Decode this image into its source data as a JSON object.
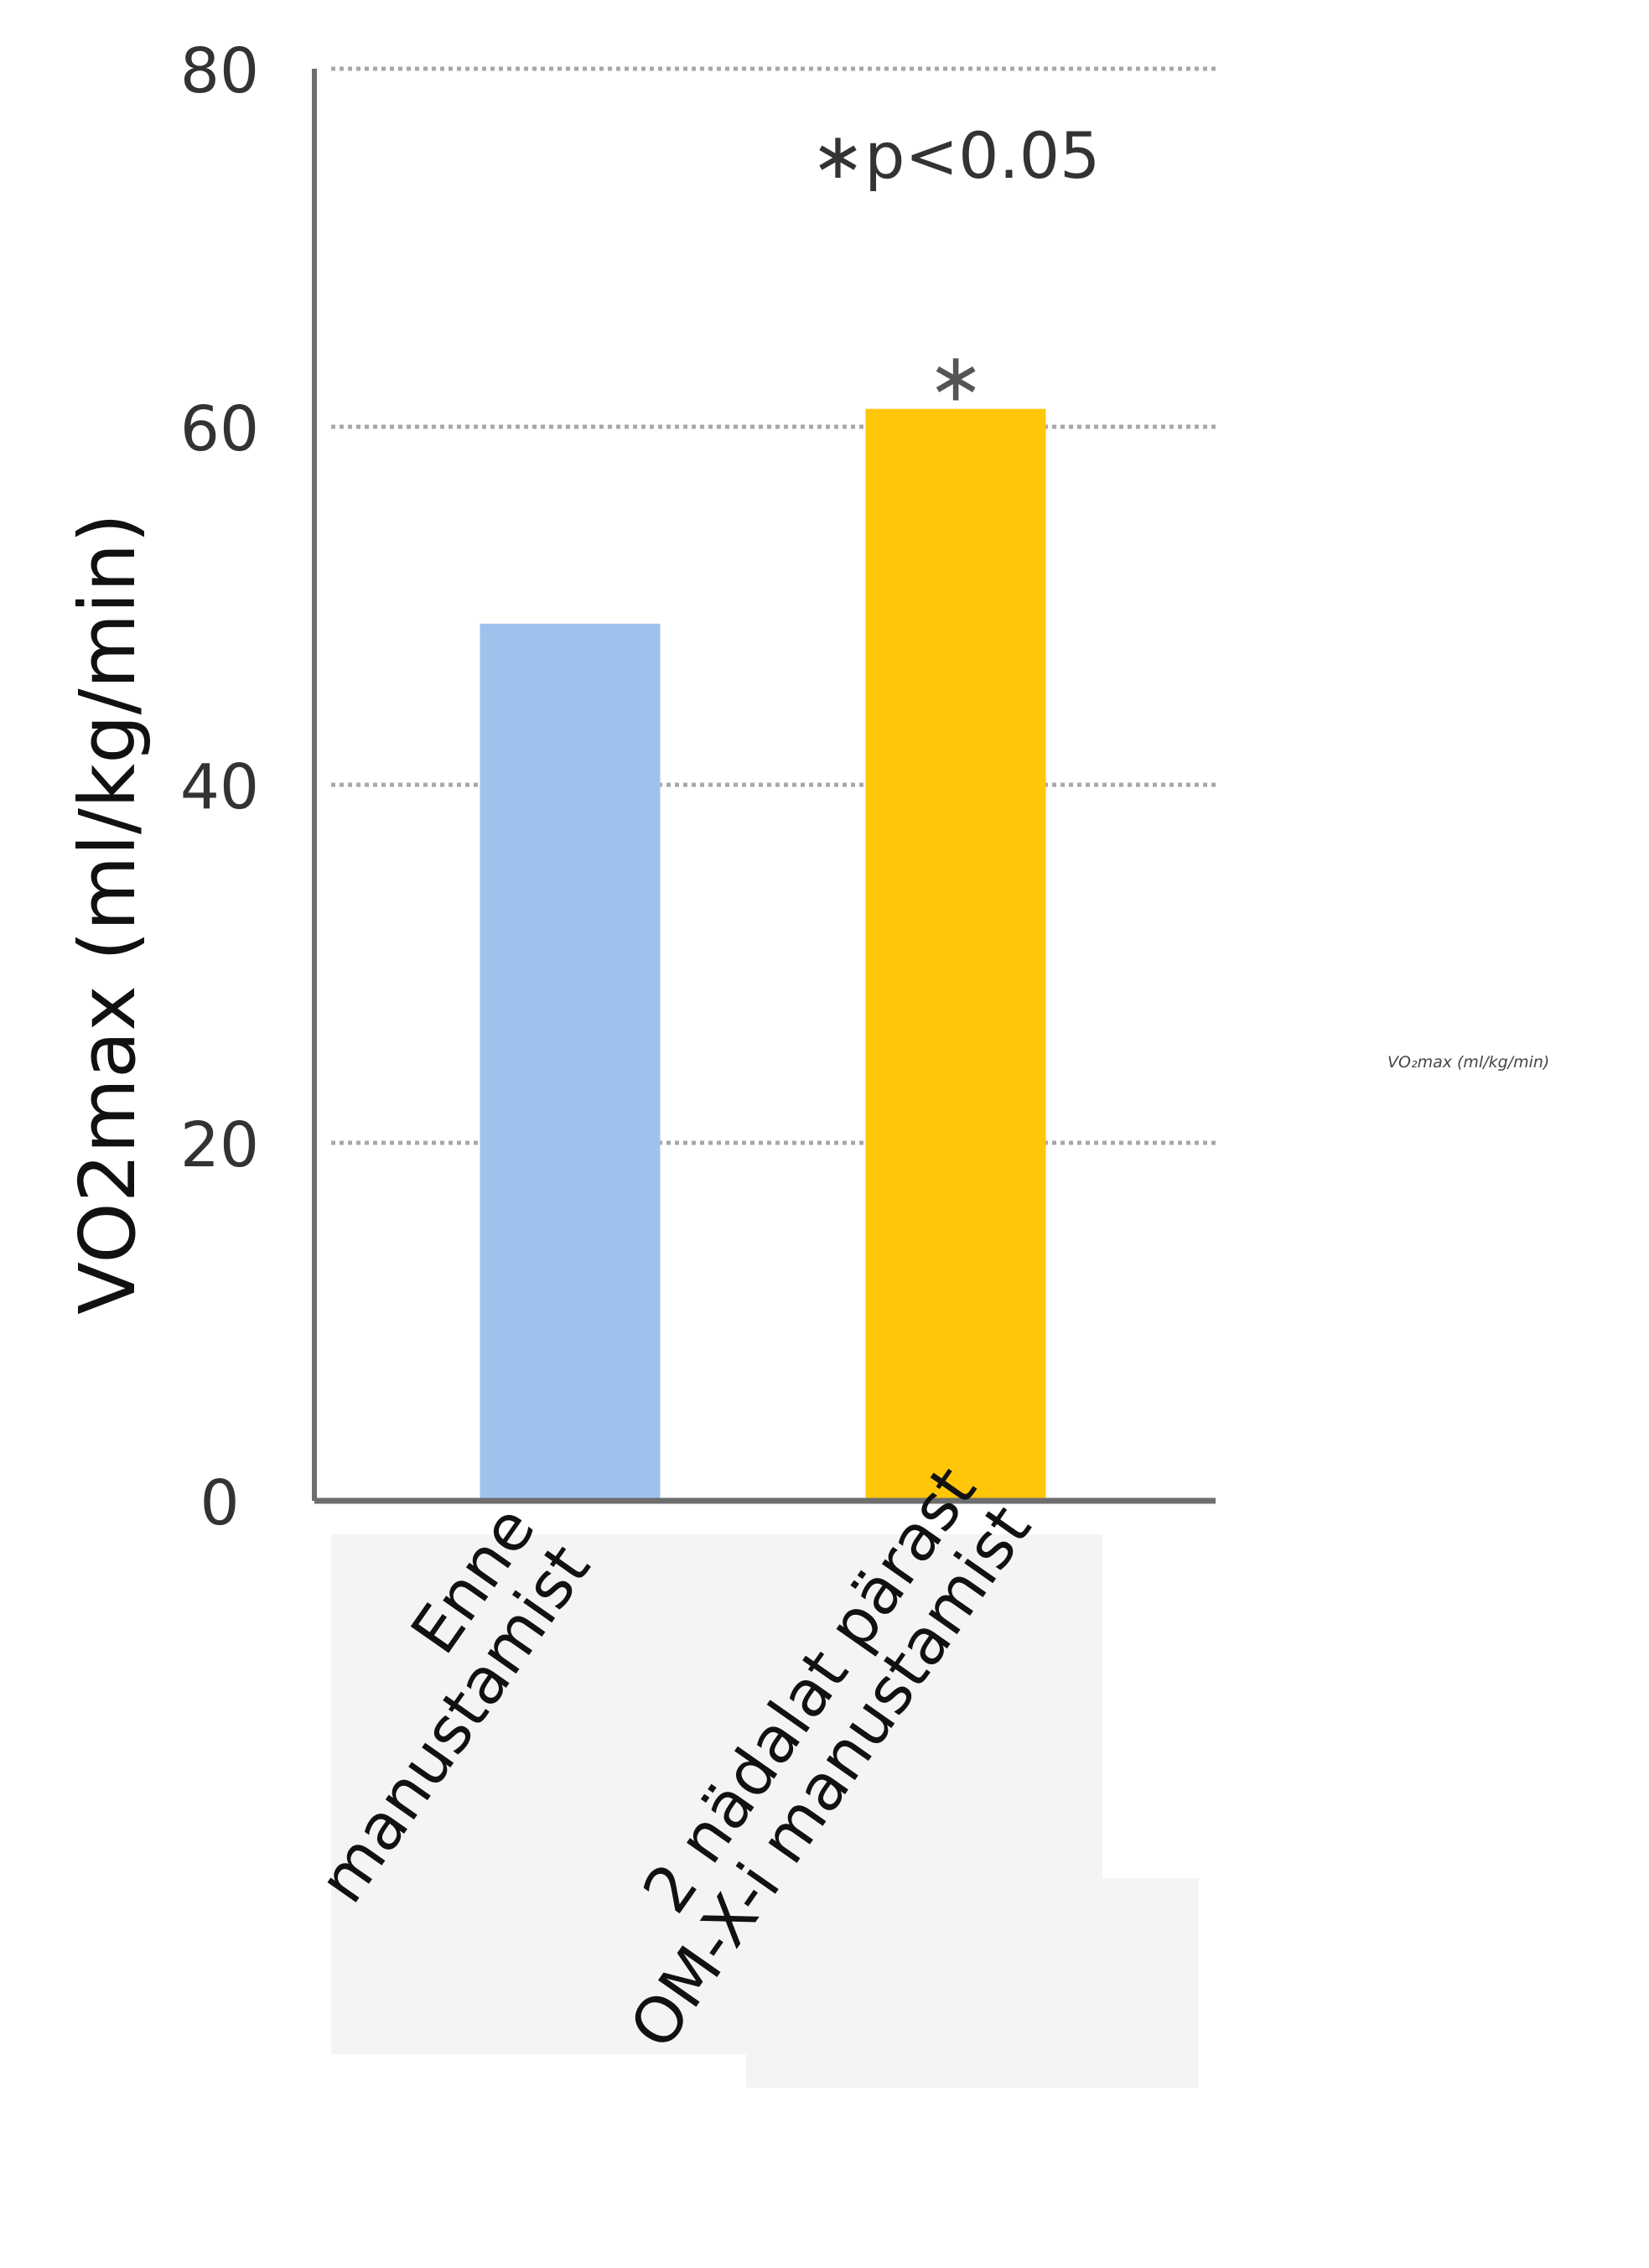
{
  "chart_data": {
    "type": "bar",
    "ylabel": "VO2max (ml/kg/min)",
    "categories": [
      [
        "Enne",
        "manustamist"
      ],
      [
        "2 nädalat pärast",
        "OM-X-i manustamist"
      ]
    ],
    "values": [
      49,
      61
    ],
    "colors": [
      "#9dc3ec",
      "#ffc60a"
    ],
    "ylim": [
      0,
      80
    ],
    "yticks": [
      0,
      20,
      40,
      60,
      80
    ],
    "grid": true,
    "significance_marker": "∗",
    "significance_marked_bar": 1,
    "annotation": "∗p<0.05"
  },
  "colors": {
    "axis": "#6e6e6e",
    "grid": "#a8a8a8",
    "text": "#333333",
    "label_panel": "#f4f4f4"
  },
  "secondary_text": "VO₂max (ml/kg/min)"
}
